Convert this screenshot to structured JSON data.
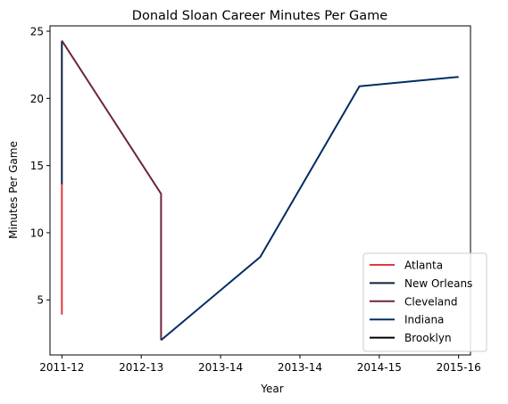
{
  "chart_data": {
    "type": "line",
    "title": "Donald Sloan  Career Minutes Per Game",
    "xlabel": "Year",
    "ylabel": "Minutes Per Game",
    "x_ticks": [
      "2011-12",
      "2012-13",
      "2013-14",
      "2013-14",
      "2014-15",
      "2015-16"
    ],
    "y_ticks": [
      5,
      10,
      15,
      20,
      25
    ],
    "xlim": [
      -0.15,
      5.15
    ],
    "ylim": [
      0.9,
      25.4
    ],
    "grid": false,
    "legend_position": "lower-right",
    "series": [
      {
        "name": "Atlanta",
        "color": "#e03a3e",
        "points": [
          [
            0,
            3.9
          ],
          [
            0,
            13.6
          ]
        ]
      },
      {
        "name": "New Orleans",
        "color": "#0c2340",
        "points": [
          [
            0,
            13.6
          ],
          [
            0,
            24.3
          ]
        ]
      },
      {
        "name": "Cleveland",
        "color": "#6f263d",
        "points": [
          [
            0,
            24.3
          ],
          [
            1.25,
            12.9
          ],
          [
            1.25,
            2.0
          ]
        ]
      },
      {
        "name": "Indiana",
        "color": "#002d62",
        "points": [
          [
            1.25,
            2.0
          ],
          [
            2.5,
            8.2
          ],
          [
            3.75,
            20.9
          ],
          [
            5,
            21.6
          ]
        ]
      },
      {
        "name": "Brooklyn",
        "color": "#000000",
        "points": []
      }
    ]
  }
}
